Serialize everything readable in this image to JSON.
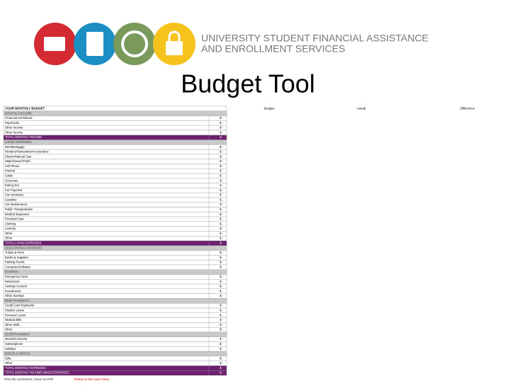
{
  "header": {
    "org_line1": "UNIVERSITY STUDENT FINANCIAL ASSISTANCE",
    "org_line2": "AND ENROLLMENT SERVICES",
    "title": "Budget Tool"
  },
  "table": {
    "heading": "YOUR MONTHLY BUDGET",
    "budget_heading": "Budget",
    "actual_heading": "Actual",
    "difference_heading": "Difference",
    "rows": [
      {
        "kind": "section",
        "label": "MONTHLY INCOME"
      },
      {
        "kind": "item",
        "label": "Financial Aid Refund",
        "budget": "$ -"
      },
      {
        "kind": "item",
        "label": "Paychecks",
        "budget": "$ -"
      },
      {
        "kind": "item",
        "label": "Other Income",
        "budget": "$ -"
      },
      {
        "kind": "item",
        "label": "Other Income",
        "budget": "$ -"
      },
      {
        "kind": "total",
        "label": "TOTAL MONTHLY INCOME",
        "budget": "$ -"
      },
      {
        "kind": "section",
        "label": "LIVING EXPENSES"
      },
      {
        "kind": "item",
        "label": "Rent/Mortgage",
        "budget": "$ -"
      },
      {
        "kind": "item",
        "label": "Renter's/Homeowner's Insurance",
        "budget": "$ -"
      },
      {
        "kind": "item",
        "label": "Electric/Natural Gas",
        "budget": "$ -"
      },
      {
        "kind": "item",
        "label": "Water/Sewer/Trash",
        "budget": "$ -"
      },
      {
        "kind": "item",
        "label": "Cell Phone",
        "budget": "$ -"
      },
      {
        "kind": "item",
        "label": "Internet",
        "budget": "$ -"
      },
      {
        "kind": "item",
        "label": "Cable",
        "budget": "$ -"
      },
      {
        "kind": "item",
        "label": "Groceries",
        "budget": "$ -"
      },
      {
        "kind": "item",
        "label": "Eating Out",
        "budget": "$ -"
      },
      {
        "kind": "item",
        "label": "Car Payment",
        "budget": "$ -"
      },
      {
        "kind": "item",
        "label": "Car Insurance",
        "budget": "$ -"
      },
      {
        "kind": "item",
        "label": "Gasoline",
        "budget": "$ -"
      },
      {
        "kind": "item",
        "label": "Car Maintenance",
        "budget": "$ -"
      },
      {
        "kind": "item",
        "label": "Public Transportation",
        "budget": "$ -"
      },
      {
        "kind": "item",
        "label": "Medical Expenses",
        "budget": "$ -"
      },
      {
        "kind": "item",
        "label": "Personal Care",
        "budget": "$ -"
      },
      {
        "kind": "item",
        "label": "Clothing",
        "budget": "$ -"
      },
      {
        "kind": "item",
        "label": "Laundry",
        "budget": "$ -"
      },
      {
        "kind": "item",
        "label": "Other",
        "budget": "$ -"
      },
      {
        "kind": "item",
        "label": "Other",
        "budget": "$ -"
      },
      {
        "kind": "total",
        "label": "TOTAL LIVING EXPENSES",
        "budget": "$ -"
      },
      {
        "kind": "section",
        "label": "EDUCATIONAL EXPENSES"
      },
      {
        "kind": "item",
        "label": "Tuition & Fees",
        "budget": "$ -"
      },
      {
        "kind": "item",
        "label": "Books & Supplies",
        "budget": "$ -"
      },
      {
        "kind": "item",
        "label": "Parking Permit",
        "budget": "$ -"
      },
      {
        "kind": "item",
        "label": "Computer/Software",
        "budget": "$ -"
      },
      {
        "kind": "section",
        "label": "SAVINGS"
      },
      {
        "kind": "item",
        "label": "Emergency Fund",
        "budget": "$ -"
      },
      {
        "kind": "item",
        "label": "Retirement",
        "budget": "$ -"
      },
      {
        "kind": "item",
        "label": "Savings Account",
        "budget": "$ -"
      },
      {
        "kind": "item",
        "label": "Investments",
        "budget": "$ -"
      },
      {
        "kind": "item",
        "label": "Other Savings",
        "budget": "$ -"
      },
      {
        "kind": "section",
        "label": "DEBT PAYMENTS"
      },
      {
        "kind": "item",
        "label": "Credit Card Payments",
        "budget": "$ -"
      },
      {
        "kind": "item",
        "label": "Student Loans",
        "budget": "$ -"
      },
      {
        "kind": "item",
        "label": "Personal Loans",
        "budget": "$ -"
      },
      {
        "kind": "item",
        "label": "Medical Bills",
        "budget": "$ -"
      },
      {
        "kind": "item",
        "label": "Other Debt",
        "budget": "$ -"
      },
      {
        "kind": "item",
        "label": "Other",
        "budget": "$ -"
      },
      {
        "kind": "section",
        "label": "ENTERTAINMENT"
      },
      {
        "kind": "item",
        "label": "Movies/Concerts",
        "budget": "$ -"
      },
      {
        "kind": "item",
        "label": "Subscriptions",
        "budget": "$ -"
      },
      {
        "kind": "item",
        "label": "Hobbies",
        "budget": "$ -"
      },
      {
        "kind": "section",
        "label": "MISCELLANEOUS"
      },
      {
        "kind": "item",
        "label": "Gifts",
        "budget": "$ -"
      },
      {
        "kind": "item",
        "label": "Other",
        "budget": "$ -"
      },
      {
        "kind": "total",
        "label": "TOTAL MONTHLY EXPENSES",
        "budget": "$ -"
      },
      {
        "kind": "total",
        "label": "TOTAL MONTHLY INCOME MINUS EXPENSES",
        "budget": "$ -"
      }
    ]
  },
  "footer": {
    "left": "Print this worksheet | Save as PDF",
    "right": "Return to the main menu"
  }
}
